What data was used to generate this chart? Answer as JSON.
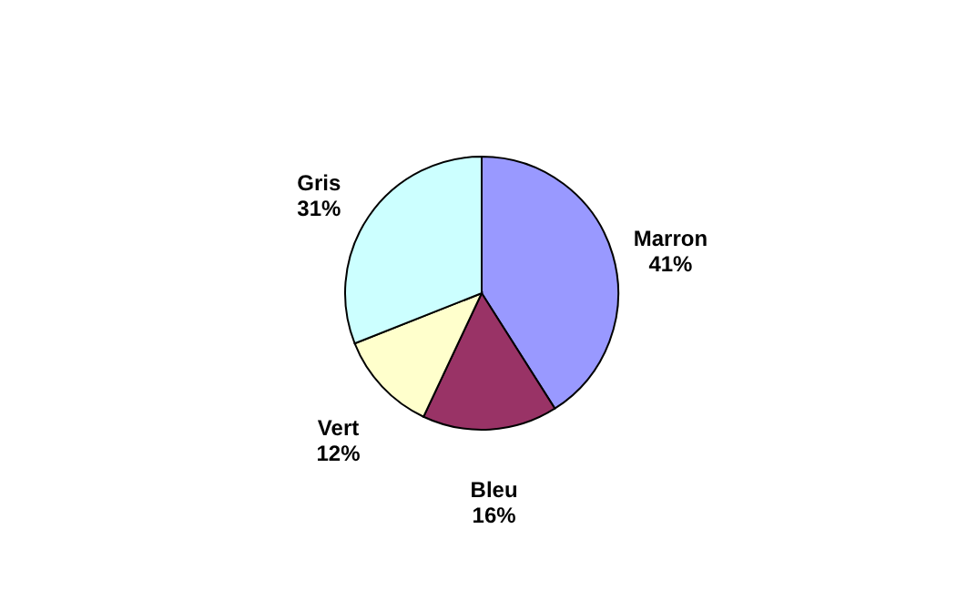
{
  "chart_data": {
    "type": "pie",
    "categories": [
      "Marron",
      "Bleu",
      "Vert",
      "Gris"
    ],
    "values": [
      41,
      16,
      12,
      31
    ],
    "value_labels": [
      "41%",
      "16%",
      "12%",
      "31%"
    ],
    "colors": [
      "#9999ff",
      "#993366",
      "#ffffcc",
      "#ccffff"
    ],
    "legend": false
  }
}
